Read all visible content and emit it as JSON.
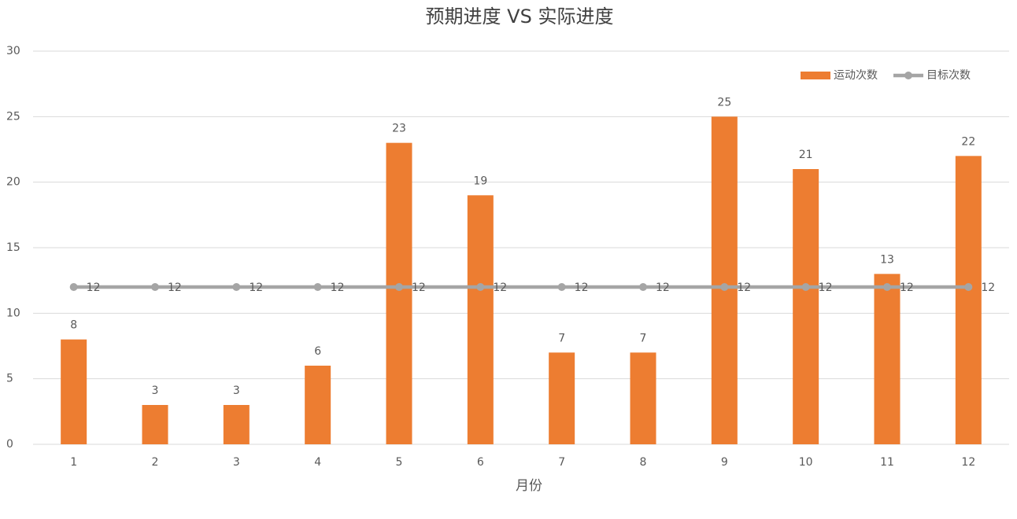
{
  "chart_data": {
    "type": "combo",
    "title": "预期进度 VS 实际进度",
    "x_label": "月份",
    "categories": [
      "1",
      "2",
      "3",
      "4",
      "5",
      "6",
      "7",
      "8",
      "9",
      "10",
      "11",
      "12"
    ],
    "series": [
      {
        "name": "运动次数",
        "type": "bar",
        "color": "#ed7d31",
        "values": [
          8,
          3,
          3,
          6,
          23,
          19,
          7,
          7,
          25,
          21,
          13,
          22
        ]
      },
      {
        "name": "目标次数",
        "type": "line",
        "color": "#a5a5a5",
        "values": [
          12,
          12,
          12,
          12,
          12,
          12,
          12,
          12,
          12,
          12,
          12,
          12
        ]
      }
    ],
    "ylim": [
      0,
      30
    ],
    "yticks": [
      0,
      5,
      10,
      15,
      20,
      25,
      30
    ],
    "grid": true,
    "legend": "top-right",
    "data_labels": true
  }
}
